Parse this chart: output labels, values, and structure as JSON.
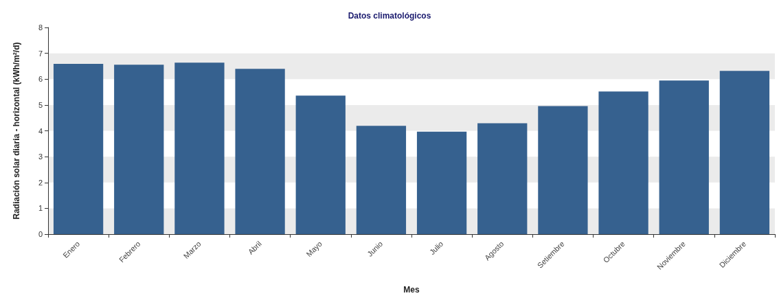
{
  "chart_data": {
    "type": "bar",
    "title": "Datos climatológicos",
    "xlabel": "Mes",
    "ylabel": "Radiación solar diaria - horizontal (kWh/m²/d)",
    "categories": [
      "Enero",
      "Febrero",
      "Marzo",
      "Abril",
      "Mayo",
      "Junio",
      "Julio",
      "Agosto",
      "Setiembre",
      "Octubre",
      "Noviembre",
      "Diciembre"
    ],
    "values": [
      6.59,
      6.56,
      6.64,
      6.4,
      5.36,
      4.19,
      3.97,
      4.29,
      4.96,
      5.52,
      5.95,
      6.32
    ],
    "color": "#36618f",
    "ylim": [
      0,
      8
    ],
    "yticks": [
      0,
      1,
      2,
      3,
      4,
      5,
      6,
      7,
      8
    ],
    "bands": [
      {
        "axis": "y",
        "from": 0,
        "to": 1,
        "color": "#ebebeb"
      },
      {
        "axis": "y",
        "from": 2,
        "to": 3,
        "color": "#ebebeb"
      },
      {
        "axis": "y",
        "from": 4,
        "to": 5,
        "color": "#ebebeb"
      },
      {
        "axis": "y",
        "from": 6,
        "to": 7,
        "color": "#ebebeb"
      }
    ]
  }
}
